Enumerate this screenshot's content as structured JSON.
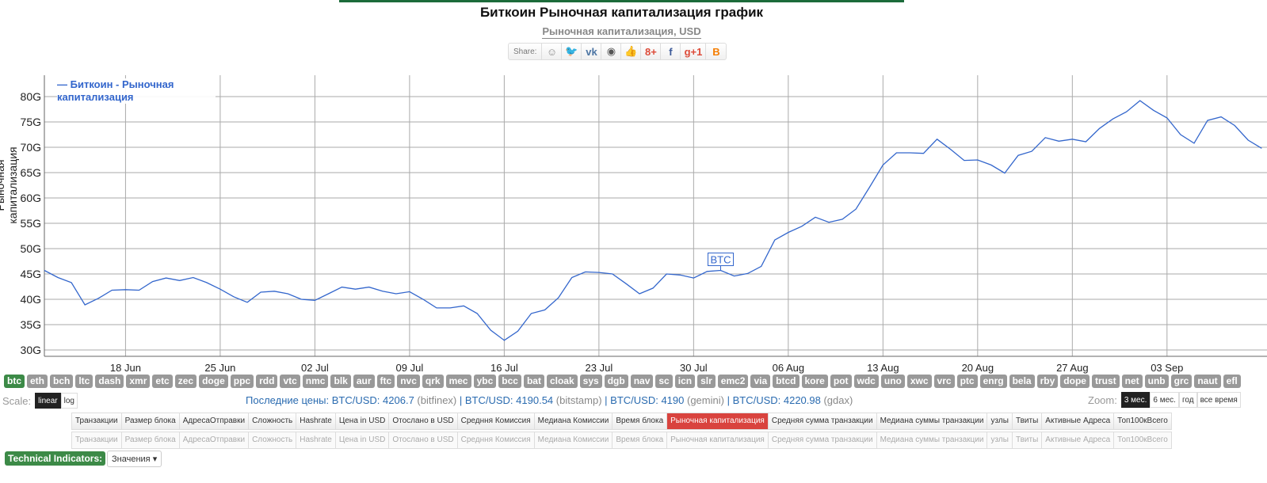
{
  "header": {
    "title": "Биткоин Рыночная капитализация график",
    "subtitle": "Рыночная капитализация, USD",
    "share_label": "Share:",
    "share_buttons": [
      {
        "icon": "reddit-icon",
        "glyph": "☺",
        "color": "#888888"
      },
      {
        "icon": "twitter-icon",
        "glyph": "🐦",
        "color": "#55acee"
      },
      {
        "icon": "vk-icon",
        "glyph": "vk",
        "color": "#4c75a3"
      },
      {
        "icon": "weibo-icon",
        "glyph": "◉",
        "color": "#555555"
      },
      {
        "icon": "like-icon",
        "glyph": "👍",
        "color": "#5b8ad6"
      },
      {
        "icon": "google-plus-icon",
        "glyph": "8+",
        "color": "#dd4b39"
      },
      {
        "icon": "facebook-icon",
        "glyph": "f",
        "color": "#3b5998"
      },
      {
        "icon": "google-plus-one-icon",
        "glyph": "g+1",
        "color": "#dd4b39"
      },
      {
        "icon": "blogger-icon",
        "glyph": "B",
        "color": "#f57d00"
      }
    ]
  },
  "chart_data": {
    "type": "line",
    "title": "Биткоин Рыночная капитализация график",
    "subtitle": "Рыночная капитализация, USD",
    "xlabel": "",
    "ylabel": "Рыночная капитализация",
    "ylim": [
      27,
      85
    ],
    "yticks": [
      "30G",
      "35G",
      "40G",
      "45G",
      "50G",
      "55G",
      "60G",
      "65G",
      "70G",
      "75G",
      "80G"
    ],
    "ytick_values": [
      30,
      35,
      40,
      45,
      50,
      55,
      60,
      65,
      70,
      75,
      80
    ],
    "xticks": [
      "18 Jun",
      "25 Jun",
      "02 Jul",
      "09 Jul",
      "16 Jul",
      "23 Jul",
      "30 Jul",
      "06 Aug",
      "13 Aug",
      "20 Aug",
      "27 Aug",
      "03 Sep"
    ],
    "xtick_day_index": [
      6,
      13,
      20,
      27,
      34,
      41,
      48,
      55,
      62,
      69,
      76,
      83
    ],
    "x_start": "12 Jun",
    "x_end": "11 Sep",
    "grid": true,
    "legend_position": "top-left",
    "series": [
      {
        "name": "Биткоин - Рыночная капитализация",
        "color": "#3366cc",
        "unit": "G USD",
        "values": [
          45.7,
          44.3,
          43.3,
          38.9,
          40.2,
          41.8,
          41.9,
          41.8,
          43.5,
          44.2,
          43.7,
          44.3,
          43.3,
          42.0,
          40.5,
          39.4,
          41.4,
          41.6,
          41.1,
          40.0,
          39.8,
          41.1,
          42.4,
          42.0,
          42.4,
          41.6,
          41.1,
          41.5,
          40.0,
          38.3,
          38.3,
          38.7,
          37.2,
          33.9,
          31.9,
          33.7,
          37.2,
          37.9,
          40.3,
          44.3,
          45.4,
          45.3,
          45.0,
          43.1,
          41.1,
          42.2,
          45.0,
          44.8,
          44.2,
          45.5,
          45.7,
          44.6,
          45.1,
          46.5,
          51.7,
          53.2,
          54.4,
          56.2,
          55.2,
          55.8,
          57.8,
          62.1,
          66.5,
          68.9,
          68.9,
          68.8,
          71.6,
          69.6,
          67.4,
          67.5,
          66.5,
          64.9,
          68.4,
          69.2,
          71.9,
          71.2,
          71.6,
          71.1,
          73.7,
          75.6,
          77.0,
          79.2,
          77.3,
          75.8,
          72.5,
          70.8,
          75.3,
          76.0,
          74.3,
          71.4,
          69.8
        ]
      }
    ],
    "annotations": [
      {
        "label": "BTC",
        "day_index": 50
      }
    ]
  },
  "chart": {
    "legend_label": "— Биткоин - Рыночная капитализация",
    "ylabel": "Рыночная капитализация",
    "flag_label": "BTC"
  },
  "coins": [
    "btc",
    "eth",
    "bch",
    "ltc",
    "dash",
    "xmr",
    "etc",
    "zec",
    "doge",
    "ppc",
    "rdd",
    "vtc",
    "nmc",
    "blk",
    "aur",
    "ftc",
    "nvc",
    "qrk",
    "mec",
    "ybc",
    "bcc",
    "bat",
    "cloak",
    "sys",
    "dgb",
    "nav",
    "sc",
    "icn",
    "slr",
    "emc2",
    "via",
    "btcd",
    "kore",
    "pot",
    "wdc",
    "uno",
    "xwc",
    "vrc",
    "ptc",
    "enrg",
    "bela",
    "rby",
    "dope",
    "trust",
    "net",
    "unb",
    "grc",
    "naut",
    "efl"
  ],
  "active_coin": "btc",
  "scale": {
    "label": "Scale:",
    "options": [
      "linear",
      "log"
    ],
    "selected": "linear"
  },
  "prices": {
    "label": "Последние цены:",
    "items": [
      {
        "pair": "BTC/USD:",
        "value": "4206.7",
        "exchange": "(bitfinex)"
      },
      {
        "pair": "BTC/USD:",
        "value": "4190.54",
        "exchange": "(bitstamp)"
      },
      {
        "pair": "BTC/USD:",
        "value": "4190",
        "exchange": "(gemini)"
      },
      {
        "pair": "BTC/USD:",
        "value": "4220.98",
        "exchange": "(gdax)"
      }
    ],
    "separator": "|"
  },
  "zoom": {
    "label": "Zoom:",
    "options": [
      "3 мес.",
      "6 мес.",
      "год",
      "все время"
    ],
    "selected": "3 мес."
  },
  "metrics": {
    "items": [
      "Транзакции",
      "Размер блока",
      "АдресаОтправки",
      "Сложность",
      "Hashrate",
      "Цена in USD",
      "Отослано в USD",
      "Средння Комиссия",
      "Медиана Комиссии",
      "Время блока",
      "Рыночная капитализация",
      "Средняя сумма транзакции",
      "Медиана суммы транзакции",
      "узлы",
      "Твиты",
      "Активные Адреса",
      "Топ100кВсего"
    ],
    "selected": "Рыночная капитализация"
  },
  "indicators": {
    "label": "Technical Indicators:",
    "select_value": "Значения"
  }
}
